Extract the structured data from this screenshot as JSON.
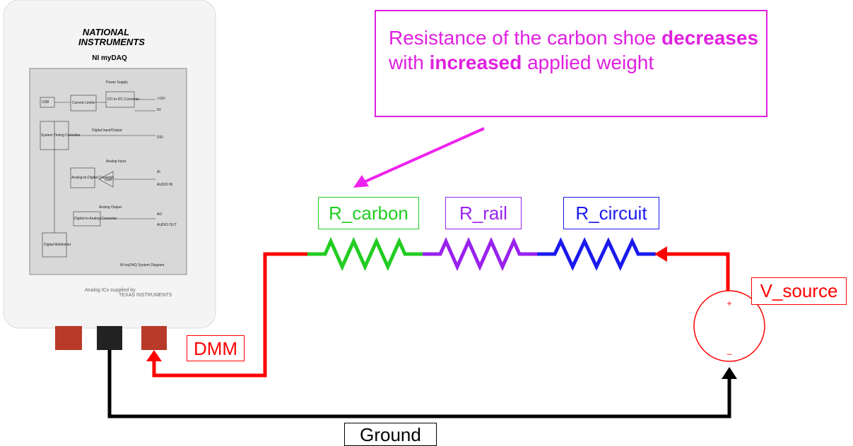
{
  "device": {
    "brand": [
      "NATIONAL",
      "INSTRUMENTS"
    ],
    "model": "NI myDAQ",
    "diagram": {
      "heading": "Power Supply",
      "blocks": [
        "USB",
        "Current Limiter",
        "DC-to-DC Converter",
        "System Timing Controller",
        "Analog-to-Digital Converter",
        "Gain",
        "Digital-to-Analog Converter",
        "Digital Multimeter"
      ],
      "sections": [
        "Digital Input/Output",
        "Analog Input",
        "Analog Output"
      ],
      "pins": [
        "+15V",
        "5V",
        "DIO",
        "AI",
        "AUDIO IN",
        "AO",
        "AUDIO OUT"
      ],
      "caption": "NI myDAQ System Diagram"
    },
    "footer": [
      "Analog ICs supplied by",
      "TEXAS INSTRUMENTS"
    ]
  },
  "callout": {
    "parts": [
      "Resistance of the carbon shoe",
      "decreases",
      "with",
      "increased",
      "applied weight"
    ]
  },
  "labels": {
    "r_carbon": "R_carbon",
    "r_rail": "R_rail",
    "r_circuit": "R_circuit",
    "v_source": "V_source",
    "dmm": "DMM",
    "ground": "Ground"
  }
}
